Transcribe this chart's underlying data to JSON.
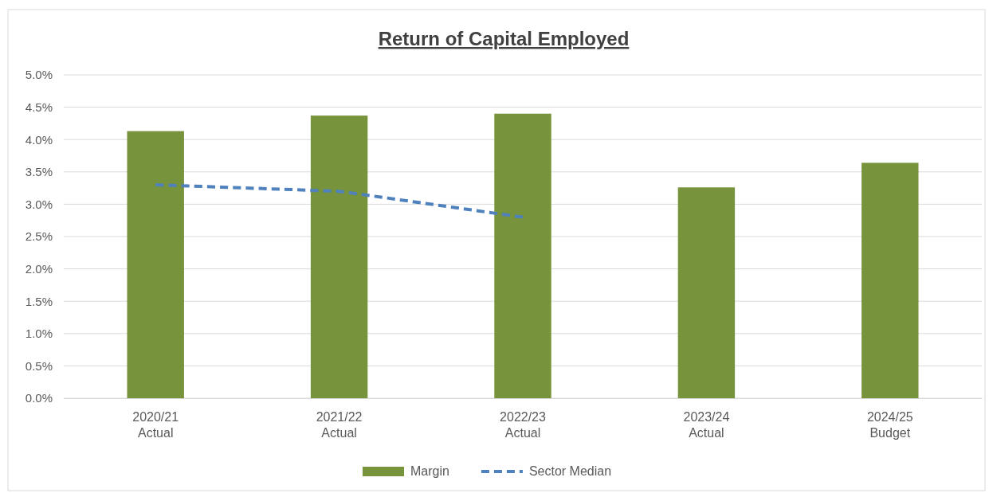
{
  "chart_data": {
    "type": "bar",
    "title": "Return of Capital Employed",
    "categories": [
      "2020/21\nActual",
      "2021/22\nActual",
      "2022/23\nActual",
      "2023/24\nActual",
      "2024/25\nBudget"
    ],
    "series": [
      {
        "name": "Margin",
        "color": "#77933c",
        "values": [
          4.13,
          4.37,
          4.4,
          3.26,
          3.64
        ]
      },
      {
        "name": "Sector Median",
        "type": "line",
        "color": "#4f81bd",
        "line_style": "dashed",
        "values": [
          3.3,
          3.2,
          2.8,
          null,
          null
        ]
      }
    ],
    "ylim": [
      0,
      5
    ],
    "yticks": [
      {
        "value": 0,
        "label": "0.0%"
      },
      {
        "value": 0.5,
        "label": "0.5%"
      },
      {
        "value": 1,
        "label": "1.0%"
      },
      {
        "value": 1.5,
        "label": "1.5%"
      },
      {
        "value": 2,
        "label": "2.0%"
      },
      {
        "value": 2.5,
        "label": "2.5%"
      },
      {
        "value": 3,
        "label": "3.0%"
      },
      {
        "value": 3.5,
        "label": "3.5%"
      },
      {
        "value": 4,
        "label": "4.0%"
      },
      {
        "value": 4.5,
        "label": "4.5%"
      },
      {
        "value": 5,
        "label": "5.0%"
      }
    ],
    "grid": "y",
    "legend": "bottom"
  }
}
